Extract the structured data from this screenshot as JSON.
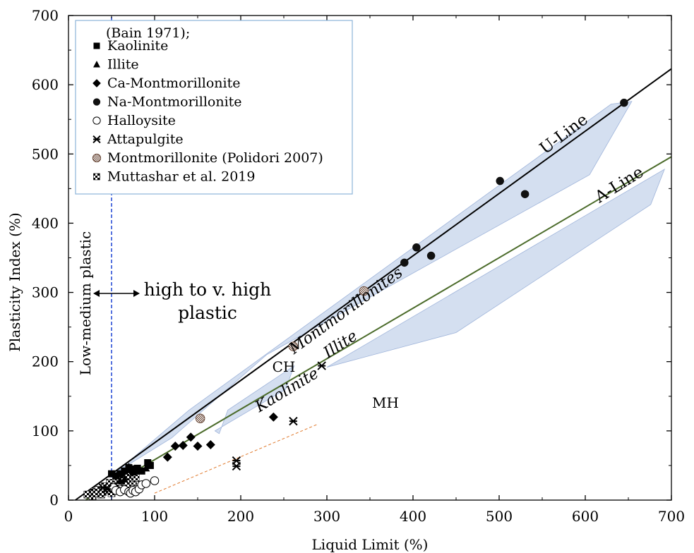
{
  "chart_data": {
    "type": "scatter",
    "xlabel": "Liquid Limit (%)",
    "ylabel": "Plasticity Index (%)",
    "xlim": [
      0,
      700
    ],
    "ylim": [
      0,
      700
    ],
    "x_ticks": [
      "0",
      "100",
      "200",
      "300",
      "400",
      "500",
      "600",
      "700"
    ],
    "y_ticks": [
      "0",
      "100",
      "200",
      "300",
      "400",
      "500",
      "600",
      "700"
    ],
    "grid": false,
    "legend_position": "top-left",
    "legend_title": "(Bain 1971);",
    "series": [
      {
        "name": "Kaolinite",
        "marker": "square",
        "points": [
          [
            50,
            38
          ],
          [
            55,
            35
          ],
          [
            60,
            38
          ],
          [
            65,
            42
          ],
          [
            70,
            47
          ],
          [
            72,
            44
          ],
          [
            75,
            45
          ],
          [
            80,
            46
          ],
          [
            85,
            42
          ],
          [
            92,
            54
          ],
          [
            95,
            50
          ]
        ]
      },
      {
        "name": "Illite",
        "marker": "triangle",
        "points": [
          [
            60,
            28
          ],
          [
            65,
            30
          ],
          [
            70,
            48
          ],
          [
            75,
            40
          ],
          [
            80,
            42
          ],
          [
            90,
            46
          ]
        ]
      },
      {
        "name": "Ca-Montmorillonite",
        "marker": "diamond",
        "points": [
          [
            115,
            62
          ],
          [
            124,
            78
          ],
          [
            133,
            79
          ],
          [
            142,
            91
          ],
          [
            150,
            78
          ],
          [
            165,
            80
          ],
          [
            238,
            120
          ]
        ]
      },
      {
        "name": "Na-Montmorillonite",
        "marker": "circle",
        "points": [
          [
            390,
            343
          ],
          [
            404,
            365
          ],
          [
            421,
            353
          ],
          [
            501,
            461
          ],
          [
            530,
            442
          ],
          [
            645,
            574
          ]
        ]
      },
      {
        "name": "Halloysite",
        "marker": "open-circle",
        "points": [
          [
            52,
            18
          ],
          [
            55,
            14
          ],
          [
            60,
            12
          ],
          [
            65,
            15
          ],
          [
            70,
            12
          ],
          [
            72,
            10
          ],
          [
            75,
            14
          ],
          [
            78,
            12
          ],
          [
            82,
            16
          ],
          [
            85,
            22
          ],
          [
            90,
            24
          ],
          [
            100,
            28
          ]
        ]
      },
      {
        "name": "Attapulgite",
        "marker": "asterisk",
        "points": [
          [
            40,
            18
          ],
          [
            45,
            16
          ],
          [
            195,
            57
          ],
          [
            195,
            49
          ],
          [
            261,
            114
          ],
          [
            294,
            194
          ]
        ]
      },
      {
        "name": "Montmorillonite (Polidori 2007)",
        "marker": "hatched-circle",
        "points": [
          [
            153,
            118
          ],
          [
            261,
            222
          ],
          [
            343,
            302
          ]
        ]
      },
      {
        "name": "Muttashar et al. 2019",
        "marker": "checker-square",
        "points": [
          [
            22,
            8
          ],
          [
            28,
            6
          ],
          [
            30,
            12
          ],
          [
            32,
            10
          ],
          [
            35,
            15
          ],
          [
            38,
            8
          ],
          [
            40,
            12
          ],
          [
            42,
            20
          ],
          [
            45,
            15
          ],
          [
            48,
            25
          ],
          [
            50,
            10
          ],
          [
            52,
            18
          ],
          [
            55,
            22
          ],
          [
            58,
            30
          ],
          [
            60,
            26
          ],
          [
            62,
            35
          ],
          [
            65,
            28
          ],
          [
            68,
            22
          ],
          [
            70,
            36
          ],
          [
            72,
            30
          ],
          [
            75,
            26
          ],
          [
            78,
            32
          ]
        ]
      }
    ],
    "reference_lines": [
      {
        "name": "U-Line",
        "points": [
          [
            8,
            0
          ],
          [
            700,
            623
          ]
        ]
      },
      {
        "name": "A-Line",
        "points": [
          [
            20,
            0
          ],
          [
            700,
            496
          ]
        ]
      }
    ],
    "boundary_line": {
      "x": 50,
      "y_range": [
        0,
        700
      ]
    },
    "trend_line": {
      "points": [
        [
          100,
          10
        ],
        [
          290,
          110
        ]
      ]
    },
    "bands": [
      {
        "name": "Montmorillonites",
        "polygon": [
          [
            55,
            40
          ],
          [
            140,
            130
          ],
          [
            630,
            572
          ],
          [
            654,
            576
          ],
          [
            605,
            470
          ],
          [
            230,
            210
          ],
          [
            120,
            90
          ]
        ]
      },
      {
        "name": "Illite",
        "polygon": [
          [
            300,
            192
          ],
          [
            692,
            478
          ],
          [
            676,
            427
          ],
          [
            450,
            242
          ]
        ]
      },
      {
        "name": "Kaolinite",
        "polygon": [
          [
            170,
            100
          ],
          [
            252,
            160
          ],
          [
            262,
            194
          ],
          [
            185,
            130
          ],
          [
            175,
            96
          ]
        ]
      }
    ],
    "annotations": [
      {
        "id": "low",
        "text": "Low-medium plastic"
      },
      {
        "id": "high1",
        "text": "high to v. high"
      },
      {
        "id": "high2",
        "text": "plastic"
      },
      {
        "id": "ch",
        "text": "CH"
      },
      {
        "id": "mh",
        "text": "MH"
      },
      {
        "id": "uline",
        "text": "U-Line"
      },
      {
        "id": "aline",
        "text": "A-Line"
      },
      {
        "id": "montmorillonites",
        "text": "Montmorillonites"
      },
      {
        "id": "illite",
        "text": "Illite"
      },
      {
        "id": "kaolinite",
        "text": "Kaolinite"
      }
    ]
  },
  "colors": {
    "band": "#b7c9e6",
    "band_stroke": "#9fb4da",
    "u_line": "#000000",
    "a_line": "#4b6b2a",
    "boundary": "#2b4fd6",
    "trend": "#e07a2e",
    "legend_border": "#8cb4d8"
  }
}
